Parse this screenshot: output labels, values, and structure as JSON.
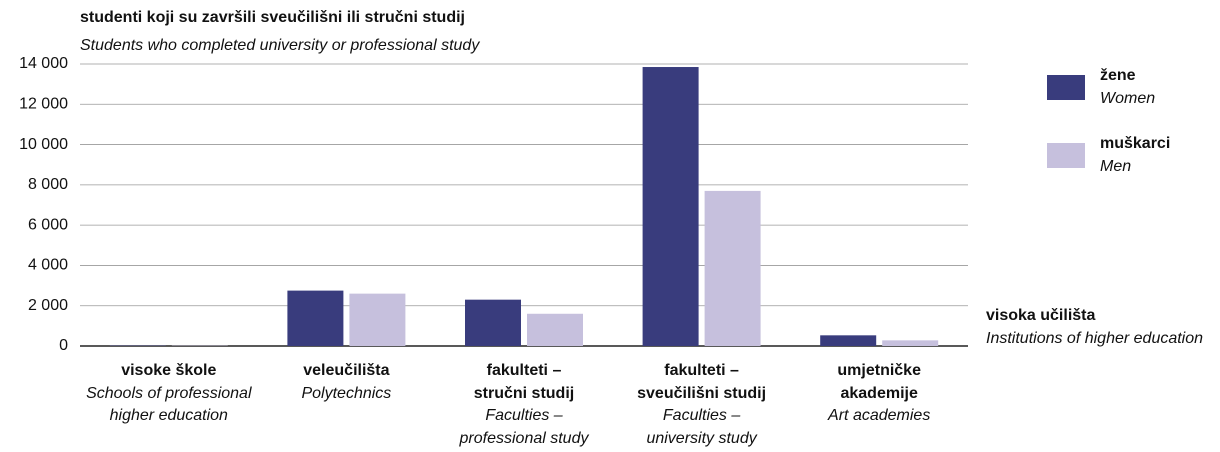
{
  "chart_data": {
    "type": "bar",
    "title": "studenti koji su završili sveučilišni ili stručni studij",
    "subtitle": "Students who completed university or professional study",
    "categories": [
      "visoke škole",
      "veleučilišta",
      "fakulteti –\nstručni studij",
      "fakulteti –\nsveučilišni studij",
      "umjetničke\nakademije"
    ],
    "category_translations": [
      "Schools of professional\nhigher education",
      "Polytechnics",
      "Faculties –\nprofessional study",
      "Faculties –\nuniversity study",
      "Art academies"
    ],
    "series": [
      {
        "name": "žene",
        "translation": "Women",
        "color": "#393c7d",
        "values": [
          20,
          2750,
          2300,
          13850,
          530
        ]
      },
      {
        "name": "muškarci",
        "translation": "Men",
        "color": "#c6c0dd",
        "values": [
          15,
          2600,
          1600,
          7700,
          280
        ]
      }
    ],
    "axis_annotation": "visoka učilišta",
    "axis_annotation_translation": "Institutions of higher education",
    "ylim": [
      0,
      14000
    ],
    "yticks": [
      0,
      {
        "value": 2000,
        "label": "2 000"
      },
      {
        "value": 4000,
        "label": "4 000"
      },
      {
        "value": 6000,
        "label": "6 000"
      },
      {
        "value": 8000,
        "label": "8 000"
      },
      {
        "value": 10000,
        "label": "10 000"
      },
      {
        "value": 12000,
        "label": "12 000"
      },
      {
        "value": 14000,
        "label": "14 000"
      }
    ],
    "grid": true
  }
}
